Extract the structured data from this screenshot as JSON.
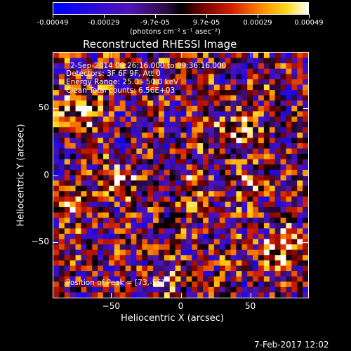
{
  "colorbar": {
    "tick_labels": [
      "-0.00049",
      "-0.00029",
      "-9.7e-05",
      "9.7e-05",
      "0.00029",
      "0.00049"
    ],
    "unit_label": "(photons cm⁻² s⁻¹ asec⁻²)",
    "range": [
      -0.00049,
      0.00049
    ]
  },
  "chart_data": {
    "type": "heatmap",
    "title": "Reconstructed RHESSI Image",
    "xlabel": "Heliocentric X (arcsec)",
    "ylabel": "Heliocentric Y (arcsec)",
    "xlim": [
      -92,
      92
    ],
    "ylim": [
      -92,
      92
    ],
    "x_ticks": [
      {
        "value": -50,
        "label": "−50"
      },
      {
        "value": 0,
        "label": "0"
      },
      {
        "value": 50,
        "label": "50"
      }
    ],
    "y_ticks": [
      {
        "value": 50,
        "label": "50"
      },
      {
        "value": 0,
        "label": "0"
      },
      {
        "value": -50,
        "label": "−50"
      }
    ],
    "info_lines": [
      "2-Sep-2014 09:26:16.000 to 09:36:16.000",
      "Detectors: 3F 6F 9F, Att 0",
      "Energy Range: 25.0 - 50.0 keV",
      "Clean    Total counts: 6.56E+03"
    ],
    "peak_label": "Position of Peak = [73,-55]",
    "peak_position": [
      73,
      -55
    ],
    "colormap": "blue-white-red (RHESSI)"
  },
  "footer": {
    "date": "7-Feb-2017 12:02"
  }
}
